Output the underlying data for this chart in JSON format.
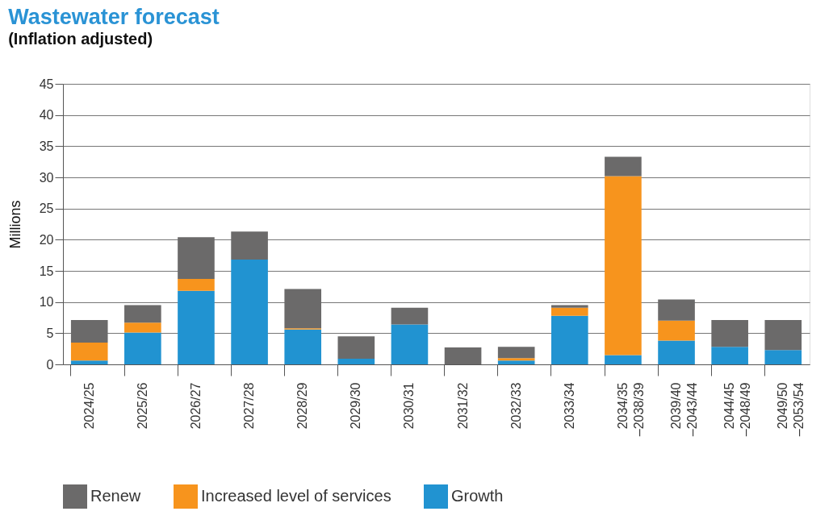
{
  "chart_data": {
    "type": "bar",
    "title": "Wastewater forecast",
    "subtitle": "(Inflation adjusted)",
    "ylabel": "Millions",
    "categories": [
      "2024/25",
      "2025/26",
      "2026/27",
      "2027/28",
      "2028/29",
      "2029/30",
      "2030/31",
      "2031/32",
      "2032/33",
      "2033/34",
      "2034/35\n–2038/39",
      "2039/40\n–2043/44",
      "2044/45\n–2048/49",
      "2049/50\n–2053/54"
    ],
    "stacked": true,
    "series": [
      {
        "name": "Growth",
        "color": "#2193d1",
        "values": [
          0.6,
          5.1,
          11.8,
          16.8,
          5.6,
          0.9,
          6.4,
          0,
          0.6,
          7.8,
          1.5,
          3.8,
          2.8,
          2.3
        ]
      },
      {
        "name": "Increased level of services",
        "color": "#f7941d",
        "values": [
          2.9,
          1.6,
          1.9,
          0,
          0.2,
          0,
          0,
          0,
          0.4,
          1.3,
          28.7,
          3.2,
          0,
          0
        ]
      },
      {
        "name": "Renew",
        "color": "#6b6a6a",
        "values": [
          3.6,
          2.8,
          6.7,
          4.5,
          6.3,
          3.6,
          2.7,
          2.7,
          1.8,
          0.4,
          3.1,
          3.4,
          4.3,
          4.8
        ]
      }
    ],
    "ylim": [
      0,
      45
    ],
    "yticks": [
      0,
      5,
      10,
      15,
      20,
      25,
      30,
      35,
      40,
      45
    ],
    "grid": "y",
    "legend": "bottom"
  }
}
